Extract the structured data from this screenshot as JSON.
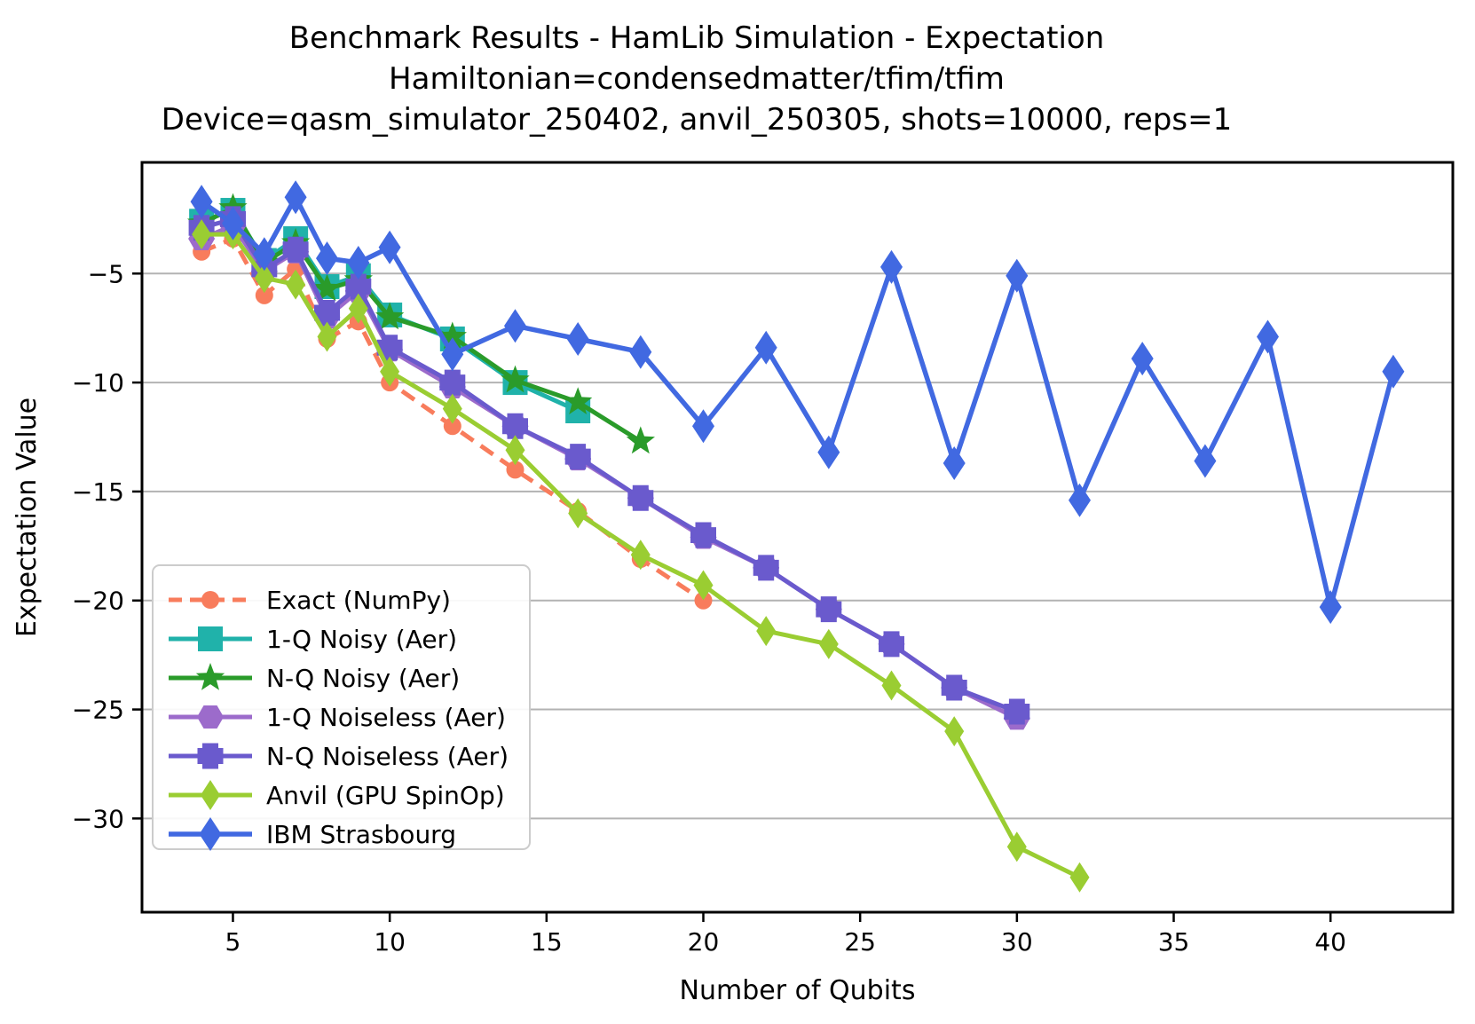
{
  "figure": {
    "title_lines": [
      "Benchmark Results - HamLib Simulation - Expectation",
      "Hamiltonian=condensedmatter/tfim/tfim",
      "Device=qasm_simulator_250402, anvil_250305, shots=10000, reps=1"
    ]
  },
  "chart_data": {
    "type": "line",
    "title": "Benchmark Results - HamLib Simulation - Expectation | Hamiltonian=condensedmatter/tfim/tfim | Device=qasm_simulator_250402, anvil_250305, shots=10000, reps=1",
    "xlabel": "Number of Qubits",
    "ylabel": "Expectation Value",
    "xlim": [
      2.1,
      43.9
    ],
    "ylim": [
      -34.3,
      0.1
    ],
    "xticks": [
      5,
      10,
      15,
      20,
      25,
      30,
      35,
      40
    ],
    "yticks": [
      -5,
      -10,
      -15,
      -20,
      -25,
      -30
    ],
    "grid": "horizontal-only",
    "grid_color": "#b3b3b3",
    "legend_position": "lower-left",
    "series": [
      {
        "name": "Exact (NumPy)",
        "color": "#f87c5c",
        "line": "dashed",
        "marker": "circle",
        "x": [
          4,
          5,
          6,
          7,
          8,
          9,
          10,
          12,
          14,
          16,
          18,
          20
        ],
        "y": [
          -4.0,
          -3.4,
          -6.0,
          -4.8,
          -8.0,
          -7.2,
          -10.0,
          -12.0,
          -14.0,
          -15.9,
          -18.1,
          -20.0
        ]
      },
      {
        "name": "1-Q Noisy (Aer)",
        "color": "#20b2aa",
        "line": "solid",
        "marker": "square",
        "x": [
          4,
          5,
          6,
          7,
          8,
          9,
          10,
          12,
          14,
          16
        ],
        "y": [
          -2.6,
          -2.1,
          -4.4,
          -3.4,
          -5.6,
          -5.1,
          -6.9,
          -8.0,
          -10.0,
          -11.3
        ]
      },
      {
        "name": "N-Q Noisy (Aer)",
        "color": "#2a9b2a",
        "line": "solid",
        "marker": "star",
        "x": [
          4,
          5,
          6,
          7,
          8,
          9,
          10,
          12,
          14,
          16,
          18
        ],
        "y": [
          -2.7,
          -2.0,
          -4.5,
          -3.6,
          -5.7,
          -5.3,
          -7.0,
          -7.9,
          -9.9,
          -10.9,
          -12.7
        ]
      },
      {
        "name": "1-Q Noiseless (Aer)",
        "color": "#9c6bcb",
        "line": "solid",
        "marker": "hexagon",
        "x": [
          4,
          5,
          6,
          7,
          8,
          9,
          10,
          12,
          14,
          16,
          18,
          20,
          22,
          24,
          26,
          28,
          30
        ],
        "y": [
          -3.4,
          -2.8,
          -4.9,
          -4.0,
          -7.0,
          -5.8,
          -8.5,
          -10.2,
          -12.0,
          -13.5,
          -15.3,
          -17.1,
          -18.5,
          -20.4,
          -22.0,
          -24.0,
          -25.4
        ]
      },
      {
        "name": "N-Q Noiseless (Aer)",
        "color": "#6a5acd",
        "line": "solid",
        "marker": "plus",
        "x": [
          4,
          5,
          6,
          7,
          8,
          9,
          10,
          12,
          14,
          16,
          18,
          20,
          22,
          24,
          26,
          28,
          30
        ],
        "y": [
          -2.9,
          -2.5,
          -4.8,
          -3.9,
          -6.8,
          -5.6,
          -8.4,
          -10.0,
          -12.0,
          -13.4,
          -15.3,
          -17.0,
          -18.5,
          -20.4,
          -22.0,
          -24.0,
          -25.1
        ]
      },
      {
        "name": "Anvil (GPU SpinOp)",
        "color": "#9acd32",
        "line": "solid",
        "marker": "thin-diamond",
        "x": [
          4,
          5,
          6,
          7,
          8,
          9,
          10,
          12,
          14,
          16,
          18,
          20,
          22,
          24,
          26,
          28,
          30,
          32
        ],
        "y": [
          -3.2,
          -3.2,
          -5.2,
          -5.5,
          -7.9,
          -6.6,
          -9.5,
          -11.2,
          -13.1,
          -16.0,
          -17.9,
          -19.3,
          -21.4,
          -22.0,
          -23.9,
          -26.0,
          -31.3,
          -32.7
        ]
      },
      {
        "name": "IBM Strasbourg",
        "color": "#4169e1",
        "line": "solid",
        "marker": "thin-diamond",
        "x": [
          4,
          5,
          6,
          7,
          8,
          9,
          10,
          12,
          14,
          16,
          18,
          20,
          22,
          24,
          26,
          28,
          30,
          32,
          34,
          36,
          38,
          40,
          42
        ],
        "y": [
          -1.7,
          -2.7,
          -4.1,
          -1.5,
          -4.3,
          -4.5,
          -3.8,
          -8.7,
          -7.4,
          -8.0,
          -8.6,
          -12.0,
          -8.4,
          -13.2,
          -4.7,
          -13.7,
          -5.1,
          -15.4,
          -8.9,
          -13.6,
          -7.9,
          -20.3,
          -9.5
        ]
      }
    ]
  }
}
